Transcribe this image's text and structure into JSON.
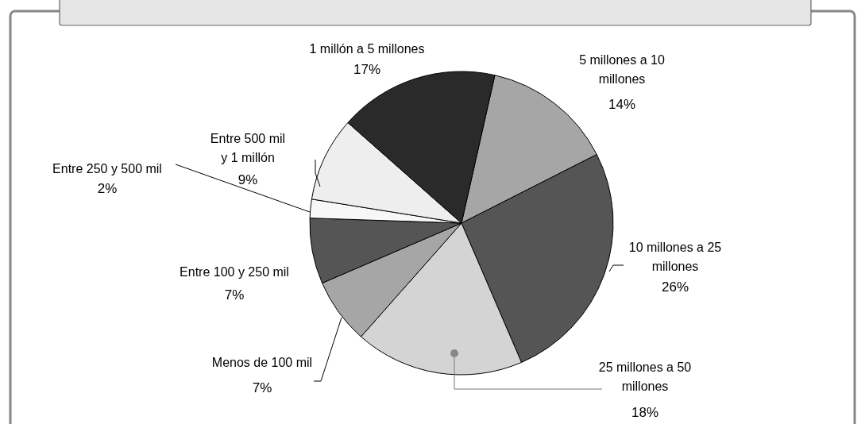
{
  "chart_data": {
    "type": "pie",
    "categories": [
      "5 millones a 10 millones",
      "10 millones a 25 millones",
      "25 millones a 50 millones",
      "Menos de 100 mil",
      "Entre 100 y 250 mil",
      "Entre 250 y 500 mil",
      "Entre 500 mil y 1 millón",
      "1 millón a 5 millones"
    ],
    "values": [
      14,
      26,
      18,
      7,
      7,
      2,
      9,
      17
    ],
    "colors": [
      "#a6a6a6",
      "#555555",
      "#d4d4d4",
      "#a6a6a6",
      "#555555",
      "#f7f7f7",
      "#eeeeee",
      "#2a2a2a"
    ],
    "value_labels": [
      "14%",
      "26%",
      "18%",
      "7%",
      "7%",
      "2%",
      "9%",
      "17%"
    ]
  }
}
